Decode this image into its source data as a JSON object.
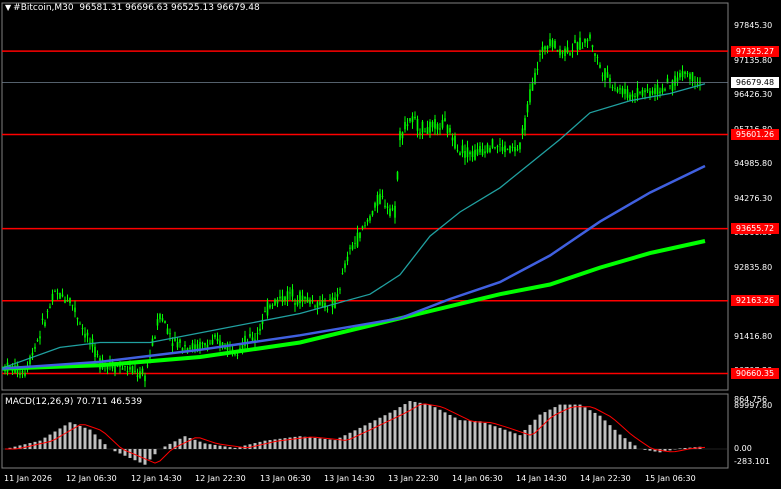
{
  "header": {
    "symbol_timeframe": "#Bitcoin,M30",
    "ohlc": "96581.31 96696.63 96525.13 96679.48"
  },
  "macd": {
    "label": "MACD(12,26,9) 70.711 46.539",
    "ticks": [
      "864.756",
      "0.00",
      "-283.101"
    ]
  },
  "price_axis": {
    "ticks": [
      "97845.30",
      "97135.80",
      "96426.30",
      "95716.80",
      "94985.80",
      "94276.30",
      "93566.80",
      "92835.80",
      "92126.30",
      "91416.80",
      "90707.30",
      "89997.80"
    ],
    "current_price": "96679.48"
  },
  "levels": [
    "97325.27",
    "95601.26",
    "93655.72",
    "92163.26",
    "90660.35"
  ],
  "time_axis": [
    "11 Jan 2026",
    "12 Jan 06:30",
    "12 Jan 14:30",
    "12 Jan 22:30",
    "13 Jan 06:30",
    "13 Jan 14:30",
    "13 Jan 22:30",
    "14 Jan 06:30",
    "14 Jan 14:30",
    "14 Jan 22:30",
    "15 Jan 06:30"
  ],
  "colors": {
    "background": "#000000",
    "candles": "#00ff00",
    "levels": "#ff0000",
    "ma_fast": "#20a0a0",
    "ma_mid": "#4060e0",
    "ma_slow": "#00ff00",
    "macd_hist": "#c0c0c0",
    "macd_signal": "#ff0000"
  }
}
